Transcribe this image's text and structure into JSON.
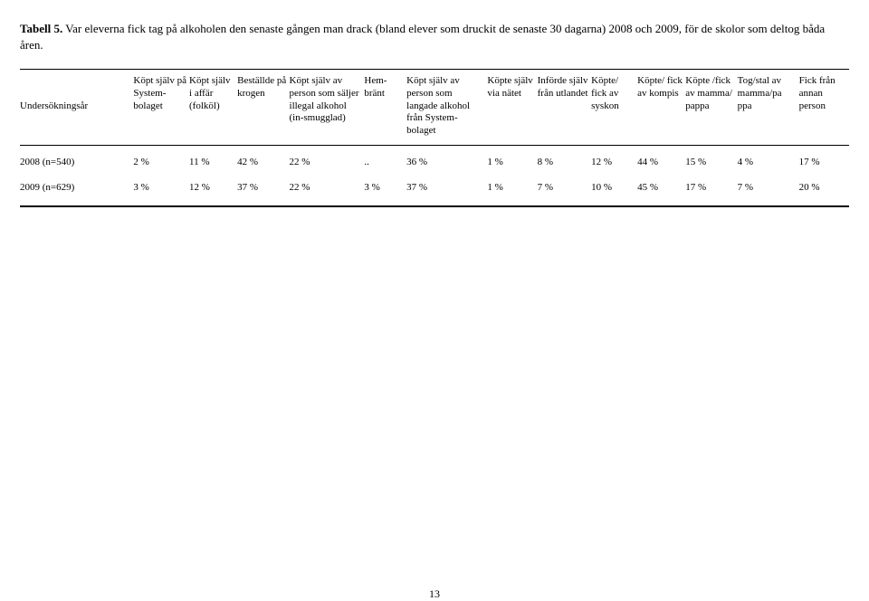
{
  "title_bold": "Tabell 5.",
  "title_rest": " Var eleverna fick tag på alkoholen den senaste gången man drack (bland elever som druckit de senaste 30 dagarna) 2008 och 2009, för de skolor som deltog båda åren.",
  "row_header": "Undersökningsår",
  "columns": [
    "Köpt själv på System-bolaget",
    "Köpt själv i affär (folköl)",
    "Beställde på krogen",
    "Köpt själv av person som säljer illegal alkohol (in-smugglad)",
    "Hem-bränt",
    "Köpt själv av person som langade alkohol från System-bolaget",
    "Köpte själv via nätet",
    "Införde själv från utlandet",
    "Köpte/ fick av syskon",
    "Köpte/ fick av kompis",
    "Köpte /fick av mamma/ pappa",
    "Tog/stal av mamma/pa ppa",
    "Fick från annan person"
  ],
  "column_widths": [
    "58px",
    "50px",
    "54px",
    "78px",
    "44px",
    "84px",
    "52px",
    "56px",
    "48px",
    "50px",
    "54px",
    "64px",
    "52px"
  ],
  "rows": [
    {
      "label": "2008 (n=540)",
      "cells": [
        "2 %",
        "11 %",
        "42 %",
        "22 %",
        "..",
        "36 %",
        "1 %",
        "8 %",
        "12 %",
        "44 %",
        "15 %",
        "4 %",
        "17 %"
      ]
    },
    {
      "label": "2009 (n=629)",
      "cells": [
        "3 %",
        "12 %",
        "37 %",
        "22 %",
        "3 %",
        "37 %",
        "1 %",
        "7 %",
        "10 %",
        "45 %",
        "17 %",
        "7 %",
        "20 %"
      ]
    }
  ],
  "page_number": "13"
}
